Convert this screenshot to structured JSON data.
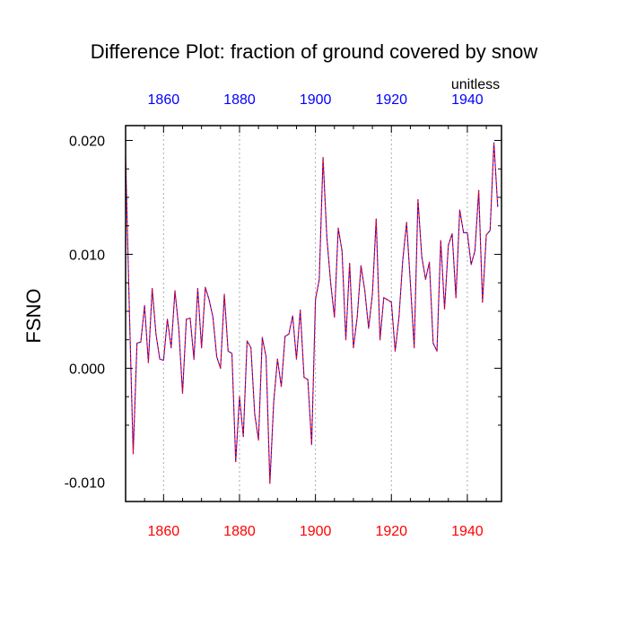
{
  "chart_data": {
    "type": "line",
    "title": "Difference Plot: fraction of ground covered by snow",
    "units_label": "unitless",
    "ylabel": "FSNO",
    "xlabel": "",
    "xlim": [
      1850,
      1949
    ],
    "ylim": [
      -0.0117,
      0.0213
    ],
    "grid": "vertical dotted lines at x ticks",
    "x_ticks": [
      1860,
      1880,
      1900,
      1920,
      1940
    ],
    "x_tick_labels_bottom": [
      "1860",
      "1880",
      "1900",
      "1920",
      "1940"
    ],
    "x_tick_labels_top": [
      "1860",
      "1880",
      "1900",
      "1920",
      "1940"
    ],
    "y_ticks": [
      0.02,
      0.01,
      0.0,
      -0.01
    ],
    "y_tick_labels": [
      "0.020",
      "0.010",
      "0.000",
      "-0.010"
    ],
    "bottom_tick_color": "#ff0000",
    "top_tick_color": "#0000ff",
    "series": [
      {
        "name": "difference",
        "line_style": "dashed",
        "color_a": "#0000ff",
        "color_b": "#ff0000",
        "x_start": 1850,
        "x_step": 1,
        "values": [
          0.0185,
          0.005,
          -0.0075,
          0.0022,
          0.0023,
          0.0055,
          0.0005,
          0.007,
          0.003,
          0.0008,
          0.0007,
          0.0043,
          0.0018,
          0.0068,
          0.0035,
          -0.0022,
          0.0043,
          0.0044,
          0.0008,
          0.007,
          0.0018,
          0.0071,
          0.006,
          0.0045,
          0.001,
          0.0,
          0.0065,
          0.0015,
          0.0013,
          -0.0082,
          -0.0025,
          -0.006,
          0.0024,
          0.0018,
          -0.004,
          -0.0063,
          0.0027,
          0.001,
          -0.0101,
          -0.003,
          0.0008,
          -0.0016,
          0.0028,
          0.003,
          0.0046,
          0.0008,
          0.0051,
          -0.0008,
          -0.001,
          -0.0067,
          0.006,
          0.0078,
          0.0185,
          0.0115,
          0.0075,
          0.0045,
          0.0123,
          0.0103,
          0.0025,
          0.0092,
          0.0018,
          0.0045,
          0.009,
          0.0068,
          0.0035,
          0.0065,
          0.0131,
          0.0025,
          0.0062,
          0.006,
          0.0058,
          0.0015,
          0.0045,
          0.0095,
          0.0128,
          0.0075,
          0.0018,
          0.0148,
          0.0098,
          0.0078,
          0.0093,
          0.0022,
          0.0015,
          0.0112,
          0.0052,
          0.0108,
          0.0118,
          0.0062,
          0.0139,
          0.0119,
          0.0119,
          0.0091,
          0.0103,
          0.0156,
          0.0058,
          0.0117,
          0.0121,
          0.0198,
          0.0142
        ]
      }
    ]
  }
}
